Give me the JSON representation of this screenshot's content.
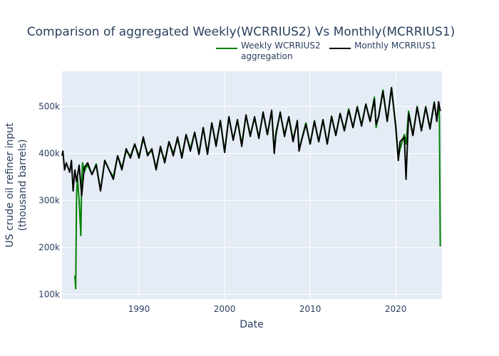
{
  "chart_data": {
    "type": "line",
    "title": "Comparison of aggregated Weekly(WCRRIUS2) Vs Monthly(MCRRIUS1)",
    "xlabel": "Date",
    "ylabel_lines": [
      "US crude oil refiner input",
      "(thousand barrels)"
    ],
    "xlim": [
      1981.0,
      2025.4
    ],
    "ylim": [
      90000,
      575000
    ],
    "x_ticks": [
      1990,
      2000,
      2010,
      2020
    ],
    "x_tick_labels": [
      "1990",
      "2000",
      "2010",
      "2020"
    ],
    "y_ticks": [
      100000,
      200000,
      300000,
      400000,
      500000
    ],
    "y_tick_labels": [
      "100k",
      "200k",
      "300k",
      "400k",
      "500k"
    ],
    "background": "#e5ecf6",
    "grid": true,
    "legend_position": "top-right (horizontal, above plot)",
    "series": [
      {
        "name_lines": [
          "Weekly WCRRIUS2",
          "aggregation"
        ],
        "color": "#008000",
        "x": [
          1982.5,
          1982.6,
          1982.7,
          1982.8,
          1983.0,
          1983.2,
          1983.3,
          1983.4,
          1983.6,
          1983.8,
          1984.0,
          1984.5,
          1985.0,
          1985.5,
          1986.0,
          1986.5,
          1987.0,
          1987.5,
          1988.0,
          1988.5,
          1989.0,
          1989.5,
          1990.0,
          1990.5,
          1991.0,
          1991.5,
          1992.0,
          1992.5,
          1993.0,
          1993.5,
          1994.0,
          1994.5,
          1995.0,
          1995.5,
          1996.0,
          1996.5,
          1997.0,
          1997.5,
          1998.0,
          1998.5,
          1999.0,
          1999.5,
          2000.0,
          2000.5,
          2001.0,
          2001.5,
          2002.0,
          2002.5,
          2003.0,
          2003.5,
          2004.0,
          2004.5,
          2005.0,
          2005.5,
          2005.8,
          2006.0,
          2006.5,
          2007.0,
          2007.5,
          2008.0,
          2008.5,
          2008.7,
          2009.0,
          2009.5,
          2010.0,
          2010.5,
          2011.0,
          2011.5,
          2012.0,
          2012.5,
          2013.0,
          2013.5,
          2014.0,
          2014.5,
          2015.0,
          2015.5,
          2016.0,
          2016.5,
          2017.0,
          2017.5,
          2017.7,
          2018.0,
          2018.5,
          2019.0,
          2019.5,
          2020.0,
          2020.3,
          2020.5,
          2021.0,
          2021.2,
          2021.5,
          2022.0,
          2022.5,
          2023.0,
          2023.5,
          2024.0,
          2024.5,
          2024.8,
          2025.0,
          2025.1,
          2025.2
        ],
        "y": [
          140000,
          112000,
          310000,
          350000,
          300000,
          225000,
          340000,
          380000,
          360000,
          370000,
          375000,
          355000,
          378000,
          322000,
          385000,
          365000,
          350000,
          395000,
          370000,
          405000,
          395000,
          420000,
          395000,
          430000,
          400000,
          405000,
          370000,
          410000,
          385000,
          425000,
          400000,
          430000,
          395000,
          440000,
          410000,
          445000,
          400000,
          455000,
          400000,
          465000,
          420000,
          470000,
          405000,
          478000,
          430000,
          470000,
          420000,
          480000,
          440000,
          475000,
          435000,
          485000,
          440000,
          490000,
          405000,
          445000,
          485000,
          440000,
          478000,
          430000,
          468000,
          410000,
          430000,
          465000,
          420000,
          470000,
          425000,
          470000,
          420000,
          480000,
          440000,
          485000,
          450000,
          495000,
          455000,
          500000,
          460000,
          505000,
          470000,
          520000,
          455000,
          480000,
          535000,
          470000,
          540000,
          460000,
          390000,
          410000,
          440000,
          420000,
          490000,
          440000,
          500000,
          450000,
          500000,
          455000,
          510000,
          470000,
          505000,
          480000,
          202000
        ]
      },
      {
        "name": "Monthly MCRRIUS1",
        "color": "#000000",
        "x": [
          1981.0,
          1981.1,
          1981.3,
          1981.5,
          1981.7,
          1981.9,
          1982.1,
          1982.3,
          1982.5,
          1982.7,
          1983.0,
          1983.3,
          1983.6,
          1984.0,
          1984.5,
          1985.0,
          1985.5,
          1986.0,
          1986.5,
          1987.0,
          1987.5,
          1988.0,
          1988.5,
          1989.0,
          1989.5,
          1990.0,
          1990.5,
          1991.0,
          1991.5,
          1992.0,
          1992.5,
          1993.0,
          1993.5,
          1994.0,
          1994.5,
          1995.0,
          1995.5,
          1996.0,
          1996.5,
          1997.0,
          1997.5,
          1998.0,
          1998.5,
          1999.0,
          1999.5,
          2000.0,
          2000.5,
          2001.0,
          2001.5,
          2002.0,
          2002.5,
          2003.0,
          2003.5,
          2004.0,
          2004.5,
          2005.0,
          2005.5,
          2005.8,
          2006.0,
          2006.5,
          2007.0,
          2007.5,
          2008.0,
          2008.5,
          2008.7,
          2009.0,
          2009.5,
          2010.0,
          2010.5,
          2011.0,
          2011.5,
          2012.0,
          2012.5,
          2013.0,
          2013.5,
          2014.0,
          2014.5,
          2015.0,
          2015.5,
          2016.0,
          2016.5,
          2017.0,
          2017.5,
          2017.7,
          2018.0,
          2018.5,
          2019.0,
          2019.5,
          2020.0,
          2020.3,
          2020.5,
          2021.0,
          2021.2,
          2021.5,
          2022.0,
          2022.5,
          2023.0,
          2023.5,
          2024.0,
          2024.5,
          2024.8,
          2025.0,
          2025.2
        ],
        "y": [
          395000,
          405000,
          365000,
          380000,
          370000,
          360000,
          385000,
          320000,
          365000,
          340000,
          375000,
          310000,
          370000,
          380000,
          355000,
          375000,
          320000,
          385000,
          365000,
          345000,
          395000,
          365000,
          410000,
          390000,
          420000,
          390000,
          435000,
          395000,
          410000,
          365000,
          415000,
          380000,
          425000,
          395000,
          435000,
          390000,
          440000,
          405000,
          445000,
          398000,
          455000,
          398000,
          465000,
          415000,
          470000,
          402000,
          478000,
          428000,
          472000,
          415000,
          482000,
          436000,
          478000,
          432000,
          488000,
          440000,
          492000,
          400000,
          440000,
          488000,
          436000,
          478000,
          425000,
          470000,
          405000,
          428000,
          462000,
          420000,
          468000,
          425000,
          472000,
          420000,
          478000,
          438000,
          485000,
          448000,
          492000,
          455000,
          498000,
          458000,
          505000,
          468000,
          515000,
          462000,
          478000,
          532000,
          468000,
          540000,
          455000,
          385000,
          425000,
          435000,
          345000,
          485000,
          438000,
          498000,
          448000,
          498000,
          452000,
          508000,
          468000,
          510000,
          490000
        ]
      }
    ]
  }
}
